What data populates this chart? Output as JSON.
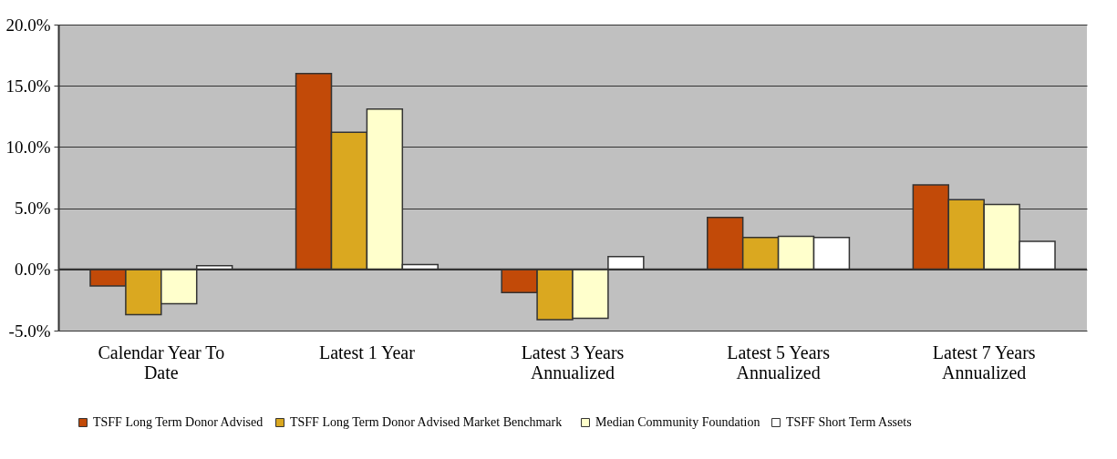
{
  "chart_data": {
    "type": "bar",
    "categories": [
      "Calendar Year To\nDate",
      "Latest 1 Year",
      "Latest 3 Years\nAnnualized",
      "Latest 5 Years\nAnnualized",
      "Latest 7 Years\nAnnualized"
    ],
    "series": [
      {
        "name": "TSFF Long Term Donor Advised",
        "color": "#c24a08",
        "values": [
          -1.35,
          16.0,
          -1.9,
          4.25,
          6.9
        ]
      },
      {
        "name": "TSFF Long Term Donor Advised  Market  Benchmark",
        "color": "#daa820",
        "values": [
          -3.7,
          11.2,
          -4.1,
          2.6,
          5.7
        ]
      },
      {
        "name": "Median Community Foundation",
        "color": "#ffffcc",
        "values": [
          -2.8,
          13.1,
          -4.0,
          2.7,
          5.3
        ]
      },
      {
        "name": "TSFF Short Term Assets",
        "color": "#ffffff",
        "values": [
          0.3,
          0.4,
          1.05,
          2.6,
          2.3
        ]
      }
    ],
    "ylim": [
      -5,
      20
    ],
    "yticks": [
      {
        "value": -5,
        "label": "-5.0%"
      },
      {
        "value": 0,
        "label": "0.0%"
      },
      {
        "value": 5,
        "label": "5.0%"
      },
      {
        "value": 10,
        "label": "10.0%"
      },
      {
        "value": 15,
        "label": "15.0%"
      },
      {
        "value": 20,
        "label": "20.0%"
      }
    ],
    "grid": "y",
    "legend": "bottom"
  }
}
